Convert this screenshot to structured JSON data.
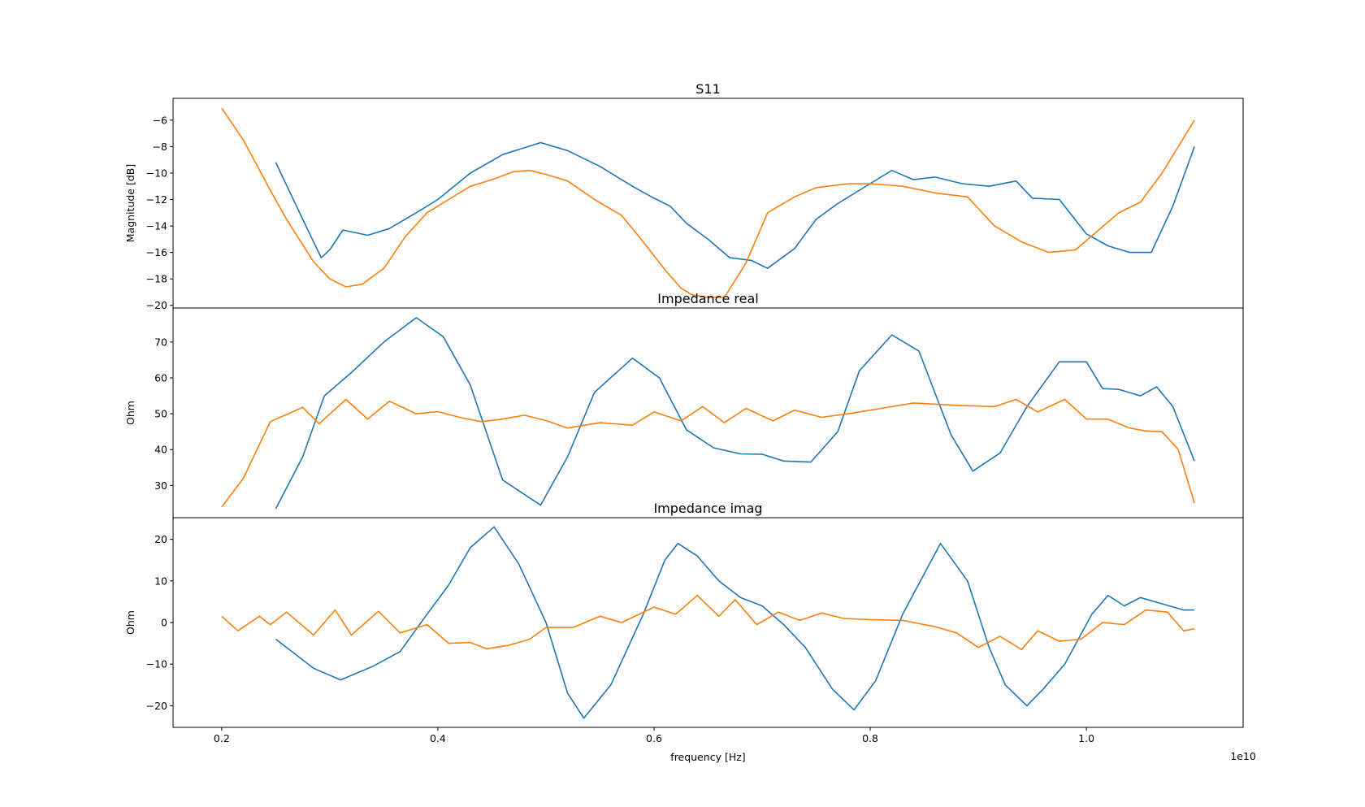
{
  "chart_data": [
    {
      "type": "line",
      "title": "S11",
      "ylabel": "Magnitude [dB]",
      "xlabel": "",
      "xlim": [
        1550000000.0,
        11450000000.0
      ],
      "ylim": [
        -20.2,
        -4.35
      ],
      "x_ticks": [],
      "y_ticks": [
        -20,
        -18,
        -16,
        -14,
        -12,
        -10,
        -8,
        -6
      ],
      "series": [
        {
          "color": "#1f77b4",
          "x": [
            2500000000.0,
            2750000000.0,
            2920000000.0,
            3000000000.0,
            3120000000.0,
            3350000000.0,
            3550000000.0,
            3800000000.0,
            4000000000.0,
            4300000000.0,
            4600000000.0,
            4950000000.0,
            5200000000.0,
            5500000000.0,
            5800000000.0,
            6000000000.0,
            6150000000.0,
            6300000000.0,
            6500000000.0,
            6700000000.0,
            6900000000.0,
            7050000000.0,
            7300000000.0,
            7500000000.0,
            7700000000.0,
            8000000000.0,
            8200000000.0,
            8400000000.0,
            8600000000.0,
            8850000000.0,
            9100000000.0,
            9350000000.0,
            9500000000.0,
            9750000000.0,
            10000000000.0,
            10200000000.0,
            10400000000.0,
            10600000000.0,
            10800000000.0,
            11000000000.0
          ],
          "y": [
            -9.2,
            -13.5,
            -16.4,
            -15.8,
            -14.3,
            -14.7,
            -14.2,
            -13.0,
            -12.0,
            -10.0,
            -8.6,
            -7.7,
            -8.3,
            -9.5,
            -11.0,
            -11.9,
            -12.5,
            -13.8,
            -15.0,
            -16.4,
            -16.6,
            -17.2,
            -15.7,
            -13.5,
            -12.3,
            -10.8,
            -9.8,
            -10.5,
            -10.3,
            -10.8,
            -11.0,
            -10.6,
            -11.9,
            -12.0,
            -14.6,
            -15.5,
            -16.0,
            -16.0,
            -12.5,
            -8.0
          ]
        },
        {
          "color": "#ff7f0e",
          "x": [
            2000000000.0,
            2200000000.0,
            2450000000.0,
            2600000000.0,
            2850000000.0,
            3000000000.0,
            3150000000.0,
            3300000000.0,
            3500000000.0,
            3700000000.0,
            3900000000.0,
            4100000000.0,
            4300000000.0,
            4500000000.0,
            4700000000.0,
            4850000000.0,
            5000000000.0,
            5200000000.0,
            5450000000.0,
            5700000000.0,
            5900000000.0,
            6100000000.0,
            6250000000.0,
            6350000000.0,
            6500000000.0,
            6650000000.0,
            6850000000.0,
            7050000000.0,
            7300000000.0,
            7500000000.0,
            7800000000.0,
            8000000000.0,
            8300000000.0,
            8600000000.0,
            8900000000.0,
            9150000000.0,
            9400000000.0,
            9650000000.0,
            9900000000.0,
            10100000000.0,
            10300000000.0,
            10500000000.0,
            10700000000.0,
            11000000000.0
          ],
          "y": [
            -5.1,
            -7.5,
            -11.3,
            -13.5,
            -16.7,
            -18.0,
            -18.6,
            -18.4,
            -17.2,
            -14.8,
            -13.0,
            -12.0,
            -11.0,
            -10.5,
            -9.9,
            -9.8,
            -10.1,
            -10.6,
            -12.0,
            -13.2,
            -15.2,
            -17.3,
            -18.7,
            -19.2,
            -19.4,
            -19.4,
            -16.8,
            -13.0,
            -11.8,
            -11.1,
            -10.8,
            -10.8,
            -11.0,
            -11.5,
            -11.8,
            -14.0,
            -15.2,
            -16.0,
            -15.8,
            -14.4,
            -13.0,
            -12.2,
            -10.0,
            -6.0
          ]
        }
      ]
    },
    {
      "type": "line",
      "title": "Impedance real",
      "ylabel": "Ohm",
      "xlabel": "",
      "xlim": [
        1550000000.0,
        11450000000.0
      ],
      "ylim": [
        21.0,
        79.5
      ],
      "x_ticks": [],
      "y_ticks": [
        30,
        40,
        50,
        60,
        70
      ],
      "series": [
        {
          "color": "#1f77b4",
          "x": [
            2500000000.0,
            2750000000.0,
            2950000000.0,
            3200000000.0,
            3500000000.0,
            3800000000.0,
            4050000000.0,
            4300000000.0,
            4600000000.0,
            4950000000.0,
            5200000000.0,
            5450000000.0,
            5800000000.0,
            6050000000.0,
            6300000000.0,
            6550000000.0,
            6800000000.0,
            7000000000.0,
            7200000000.0,
            7450000000.0,
            7700000000.0,
            7900000000.0,
            8200000000.0,
            8450000000.0,
            8750000000.0,
            8950000000.0,
            9200000000.0,
            9450000000.0,
            9750000000.0,
            10000000000.0,
            10150000000.0,
            10300000000.0,
            10500000000.0,
            10650000000.0,
            10800000000.0,
            11000000000.0
          ],
          "y": [
            23.5,
            38.0,
            55.0,
            61.5,
            70.0,
            76.8,
            71.5,
            58.0,
            31.5,
            24.5,
            38.0,
            56.0,
            65.5,
            60.0,
            45.5,
            40.5,
            38.8,
            38.7,
            36.8,
            36.5,
            45.0,
            62.0,
            72.0,
            67.5,
            44.0,
            34.0,
            39.0,
            52.0,
            64.5,
            64.5,
            57.0,
            56.8,
            55.0,
            57.5,
            52.0,
            36.8
          ]
        },
        {
          "color": "#ff7f0e",
          "x": [
            2000000000.0,
            2200000000.0,
            2450000000.0,
            2750000000.0,
            2900000000.0,
            3150000000.0,
            3350000000.0,
            3550000000.0,
            3800000000.0,
            4000000000.0,
            4200000000.0,
            4400000000.0,
            4600000000.0,
            4800000000.0,
            5000000000.0,
            5200000000.0,
            5500000000.0,
            5800000000.0,
            6000000000.0,
            6250000000.0,
            6450000000.0,
            6650000000.0,
            6850000000.0,
            7100000000.0,
            7300000000.0,
            7550000000.0,
            7800000000.0,
            8100000000.0,
            8400000000.0,
            8700000000.0,
            8950000000.0,
            9150000000.0,
            9350000000.0,
            9550000000.0,
            9800000000.0,
            10000000000.0,
            10200000000.0,
            10400000000.0,
            10550000000.0,
            10700000000.0,
            10850000000.0,
            11000000000.0
          ],
          "y": [
            24.0,
            32.0,
            47.8,
            51.8,
            47.2,
            54.0,
            48.5,
            53.5,
            50.0,
            50.6,
            49.0,
            47.8,
            48.5,
            49.6,
            48.1,
            46.0,
            47.5,
            46.8,
            50.5,
            48.0,
            52.0,
            47.5,
            51.5,
            48.0,
            51.0,
            49.0,
            50.0,
            51.5,
            53.0,
            52.5,
            52.2,
            52.0,
            54.0,
            50.5,
            54.0,
            48.5,
            48.5,
            46.0,
            45.2,
            45.0,
            40.0,
            25.0
          ]
        }
      ]
    },
    {
      "type": "line",
      "title": "Impedance imag",
      "ylabel": "Ohm",
      "xlabel": "frequency [Hz]",
      "x_offset_label": "1e10",
      "xlim": [
        1550000000.0,
        11450000000.0
      ],
      "ylim": [
        -25.2,
        25.2
      ],
      "x_ticks": [
        2000000000.0,
        4000000000.0,
        6000000000.0,
        8000000000.0,
        10000000000.0
      ],
      "x_tick_labels": [
        "0.2",
        "0.4",
        "0.6",
        "0.8",
        "1.0"
      ],
      "y_ticks": [
        -20,
        -10,
        0,
        10,
        20
      ],
      "series": [
        {
          "color": "#1f77b4",
          "x": [
            2500000000.0,
            2650000000.0,
            2850000000.0,
            3100000000.0,
            3400000000.0,
            3650000000.0,
            3900000000.0,
            4100000000.0,
            4300000000.0,
            4520000000.0,
            4750000000.0,
            5000000000.0,
            5200000000.0,
            5350000000.0,
            5600000000.0,
            5900000000.0,
            6100000000.0,
            6220000000.0,
            6400000000.0,
            6600000000.0,
            6800000000.0,
            7000000000.0,
            7200000000.0,
            7400000000.0,
            7650000000.0,
            7850000000.0,
            8050000000.0,
            8300000000.0,
            8650000000.0,
            8900000000.0,
            9100000000.0,
            9250000000.0,
            9450000000.0,
            9600000000.0,
            9800000000.0,
            10050000000.0,
            10200000000.0,
            10350000000.0,
            10500000000.0,
            10700000000.0,
            10900000000.0,
            11000000000.0
          ],
          "y": [
            -4.0,
            -7.0,
            -11.0,
            -13.8,
            -10.5,
            -7.0,
            2.0,
            9.0,
            18.0,
            23.0,
            14.0,
            0.0,
            -17.0,
            -23.0,
            -15.0,
            2.0,
            15.0,
            19.0,
            16.0,
            10.0,
            6.0,
            4.0,
            -0.5,
            -6.0,
            -16.0,
            -21.0,
            -14.0,
            2.0,
            19.0,
            10.0,
            -6.0,
            -15.0,
            -20.0,
            -16.0,
            -10.0,
            2.0,
            6.5,
            4.0,
            6.0,
            4.5,
            3.0,
            3.0
          ]
        },
        {
          "color": "#ff7f0e",
          "x": [
            2000000000.0,
            2150000000.0,
            2350000000.0,
            2450000000.0,
            2600000000.0,
            2850000000.0,
            3050000000.0,
            3200000000.0,
            3450000000.0,
            3650000000.0,
            3900000000.0,
            4100000000.0,
            4300000000.0,
            4450000000.0,
            4650000000.0,
            4850000000.0,
            5000000000.0,
            5250000000.0,
            5500000000.0,
            5700000000.0,
            6000000000.0,
            6200000000.0,
            6400000000.0,
            6600000000.0,
            6750000000.0,
            6950000000.0,
            7150000000.0,
            7350000000.0,
            7550000000.0,
            7750000000.0,
            8000000000.0,
            8300000000.0,
            8600000000.0,
            8800000000.0,
            9000000000.0,
            9200000000.0,
            9400000000.0,
            9550000000.0,
            9750000000.0,
            9950000000.0,
            10150000000.0,
            10350000000.0,
            10550000000.0,
            10750000000.0,
            10900000000.0,
            11000000000.0
          ],
          "y": [
            1.5,
            -2.0,
            1.5,
            -0.5,
            2.5,
            -3.0,
            3.0,
            -3.0,
            2.7,
            -2.5,
            -0.5,
            -5.0,
            -4.8,
            -6.3,
            -5.5,
            -4.0,
            -1.2,
            -1.2,
            1.5,
            0.0,
            3.7,
            2.0,
            6.5,
            1.5,
            5.5,
            -0.5,
            2.5,
            0.5,
            2.3,
            1.0,
            0.7,
            0.5,
            -1.0,
            -2.5,
            -6.0,
            -3.3,
            -6.5,
            -2.0,
            -4.5,
            -4.0,
            0.0,
            -0.5,
            3.0,
            2.5,
            -2.0,
            -1.5
          ]
        }
      ]
    }
  ]
}
